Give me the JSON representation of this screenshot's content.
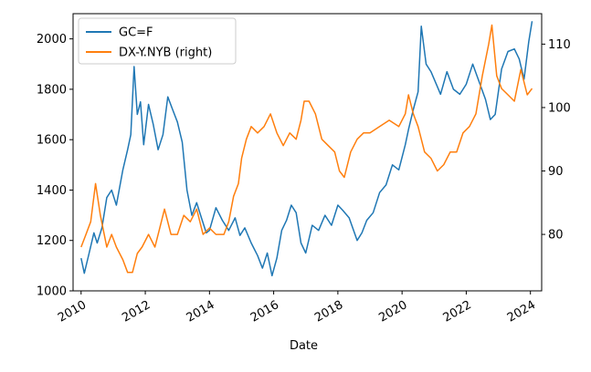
{
  "chart_data": {
    "type": "line",
    "xlabel": "Date",
    "xlim": [
      2009.75,
      2024.35
    ],
    "x_ticks": [
      2010,
      2012,
      2014,
      2016,
      2018,
      2020,
      2022,
      2024
    ],
    "x_tick_labels": [
      "2010",
      "2012",
      "2014",
      "2016",
      "2018",
      "2020",
      "2022",
      "2024"
    ],
    "y_left": {
      "lim": [
        1000,
        2100
      ],
      "ticks": [
        1000,
        1200,
        1400,
        1600,
        1800,
        2000
      ],
      "tick_labels": [
        "1000",
        "1200",
        "1400",
        "1600",
        "1800",
        "2000"
      ]
    },
    "y_right": {
      "lim": [
        71.1,
        114.8
      ],
      "ticks": [
        80,
        90,
        100,
        110
      ],
      "tick_labels": [
        "80",
        "90",
        "100",
        "110"
      ]
    },
    "legend": {
      "placement": "top-left"
    },
    "series": [
      {
        "name": "GC=F",
        "axis": "left",
        "color": "#1f77b4",
        "x": [
          2010.0,
          2010.1,
          2010.25,
          2010.4,
          2010.5,
          2010.65,
          2010.8,
          2010.95,
          2011.1,
          2011.3,
          2011.45,
          2011.55,
          2011.65,
          2011.75,
          2011.85,
          2011.95,
          2012.1,
          2012.25,
          2012.4,
          2012.55,
          2012.7,
          2012.85,
          2013.0,
          2013.15,
          2013.3,
          2013.45,
          2013.6,
          2013.75,
          2013.9,
          2014.0,
          2014.2,
          2014.4,
          2014.6,
          2014.8,
          2014.95,
          2015.1,
          2015.3,
          2015.5,
          2015.65,
          2015.8,
          2015.95,
          2016.1,
          2016.25,
          2016.4,
          2016.55,
          2016.7,
          2016.85,
          2017.0,
          2017.2,
          2017.4,
          2017.6,
          2017.8,
          2018.0,
          2018.15,
          2018.35,
          2018.6,
          2018.75,
          2018.9,
          2019.1,
          2019.3,
          2019.5,
          2019.7,
          2019.9,
          2020.1,
          2020.2,
          2020.35,
          2020.5,
          2020.6,
          2020.75,
          2020.9,
          2021.1,
          2021.2,
          2021.4,
          2021.6,
          2021.8,
          2022.0,
          2022.2,
          2022.4,
          2022.6,
          2022.75,
          2022.9,
          2023.1,
          2023.3,
          2023.5,
          2023.65,
          2023.8,
          2023.95,
          2024.05
        ],
        "y": [
          1130,
          1070,
          1150,
          1230,
          1190,
          1250,
          1370,
          1400,
          1340,
          1480,
          1560,
          1620,
          1890,
          1700,
          1750,
          1580,
          1740,
          1660,
          1560,
          1620,
          1770,
          1720,
          1670,
          1590,
          1400,
          1300,
          1350,
          1290,
          1230,
          1240,
          1330,
          1280,
          1240,
          1290,
          1220,
          1250,
          1190,
          1140,
          1090,
          1150,
          1060,
          1130,
          1240,
          1280,
          1340,
          1310,
          1190,
          1150,
          1260,
          1240,
          1300,
          1260,
          1340,
          1320,
          1290,
          1200,
          1230,
          1280,
          1310,
          1390,
          1420,
          1500,
          1480,
          1580,
          1640,
          1720,
          1790,
          2050,
          1900,
          1870,
          1810,
          1780,
          1870,
          1800,
          1780,
          1820,
          1900,
          1830,
          1760,
          1680,
          1700,
          1880,
          1950,
          1960,
          1920,
          1840,
          1990,
          2070
        ]
      },
      {
        "name": "DX-Y.NYB (right)",
        "axis": "right",
        "color": "#ff7f0e",
        "x": [
          2010.0,
          2010.15,
          2010.3,
          2010.45,
          2010.6,
          2010.8,
          2010.95,
          2011.1,
          2011.3,
          2011.45,
          2011.6,
          2011.75,
          2011.9,
          2012.1,
          2012.3,
          2012.45,
          2012.6,
          2012.8,
          2013.0,
          2013.2,
          2013.4,
          2013.6,
          2013.8,
          2014.0,
          2014.2,
          2014.45,
          2014.6,
          2014.75,
          2014.9,
          2015.0,
          2015.15,
          2015.3,
          2015.5,
          2015.7,
          2015.9,
          2016.1,
          2016.3,
          2016.5,
          2016.7,
          2016.85,
          2016.95,
          2017.1,
          2017.3,
          2017.5,
          2017.7,
          2017.9,
          2018.05,
          2018.2,
          2018.4,
          2018.6,
          2018.8,
          2019.0,
          2019.3,
          2019.6,
          2019.9,
          2020.1,
          2020.2,
          2020.35,
          2020.5,
          2020.7,
          2020.9,
          2021.1,
          2021.3,
          2021.5,
          2021.7,
          2021.9,
          2022.1,
          2022.3,
          2022.5,
          2022.7,
          2022.8,
          2022.95,
          2023.1,
          2023.3,
          2023.5,
          2023.7,
          2023.9,
          2024.05
        ],
        "y": [
          78,
          80,
          82,
          88,
          83,
          78,
          80,
          78,
          76,
          74,
          74,
          77,
          78,
          80,
          78,
          81,
          84,
          80,
          80,
          83,
          82,
          84,
          80,
          81,
          80,
          80,
          82,
          86,
          88,
          92,
          95,
          97,
          96,
          97,
          99,
          96,
          94,
          96,
          95,
          98,
          101,
          101,
          99,
          95,
          94,
          93,
          90,
          89,
          93,
          95,
          96,
          96,
          97,
          98,
          97,
          99,
          102,
          99,
          97,
          93,
          92,
          90,
          91,
          93,
          93,
          96,
          97,
          99,
          105,
          110,
          113,
          105,
          103,
          102,
          101,
          106,
          102,
          103
        ]
      }
    ]
  }
}
